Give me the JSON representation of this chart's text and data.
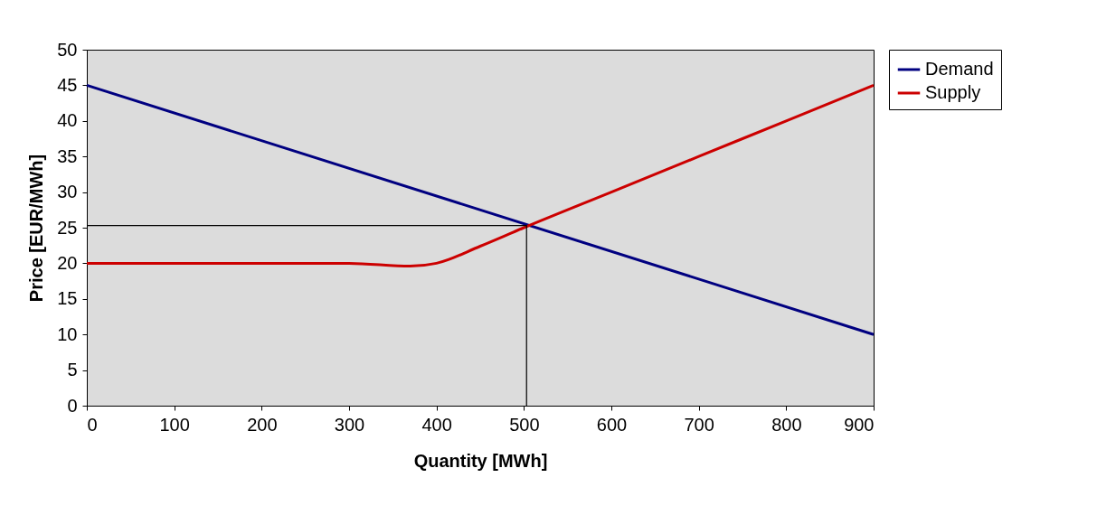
{
  "chart_data": {
    "type": "line",
    "xlabel": "Quantity [MWh]",
    "ylabel": "Price [EUR/MWh]",
    "series": [
      {
        "name": "Demand",
        "color": "#000080",
        "x": [
          0,
          900
        ],
        "values": [
          45,
          10
        ]
      },
      {
        "name": "Supply",
        "color": "#cc0000",
        "x": [
          0,
          100,
          200,
          300,
          370,
          400,
          450,
          500,
          600,
          700,
          800,
          900
        ],
        "values": [
          20,
          20,
          20,
          20,
          19.6,
          20,
          22.4,
          25,
          30,
          35,
          40,
          45
        ]
      },
      {
        "type": "line",
        "color": "#000000",
        "x": [
          0,
          503,
          503
        ],
        "values": [
          25.3,
          25.3,
          0
        ]
      }
    ],
    "xlim": [
      0,
      900
    ],
    "xticks": [
      0,
      100,
      200,
      300,
      400,
      500,
      600,
      700,
      800,
      900
    ],
    "ylim": [
      0,
      50
    ],
    "yticks": [
      0,
      5,
      10,
      15,
      20,
      25,
      30,
      35,
      40,
      45,
      50
    ],
    "grid": false,
    "legend": "right",
    "marker": "none",
    "line_style": "solid"
  }
}
